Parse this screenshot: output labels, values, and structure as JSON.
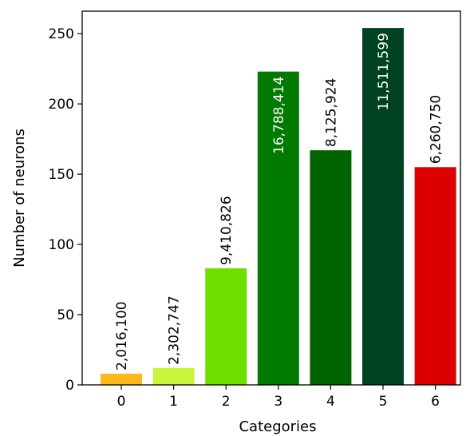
{
  "chart_data": {
    "type": "bar",
    "title": "",
    "xlabel": "Categories",
    "ylabel": "Number of neurons",
    "categories": [
      "0",
      "1",
      "2",
      "3",
      "4",
      "5",
      "6"
    ],
    "values": [
      8,
      12,
      83,
      223,
      167,
      254,
      155
    ],
    "data_labels": [
      "2,016,100",
      "2,302,747",
      "9,410,826",
      "16,788,414",
      "8,125,924",
      "11,511,599",
      "6,260,750"
    ],
    "bar_colors": [
      "#ffb81c",
      "#c8f53c",
      "#6fdf00",
      "#007a00",
      "#006400",
      "#004223",
      "#dd0000"
    ],
    "label_inside": [
      false,
      false,
      false,
      true,
      false,
      true,
      false
    ],
    "ylim": [
      0,
      266
    ],
    "yticks": [
      0,
      50,
      100,
      150,
      200,
      250
    ],
    "grid": false,
    "legend": "none"
  }
}
